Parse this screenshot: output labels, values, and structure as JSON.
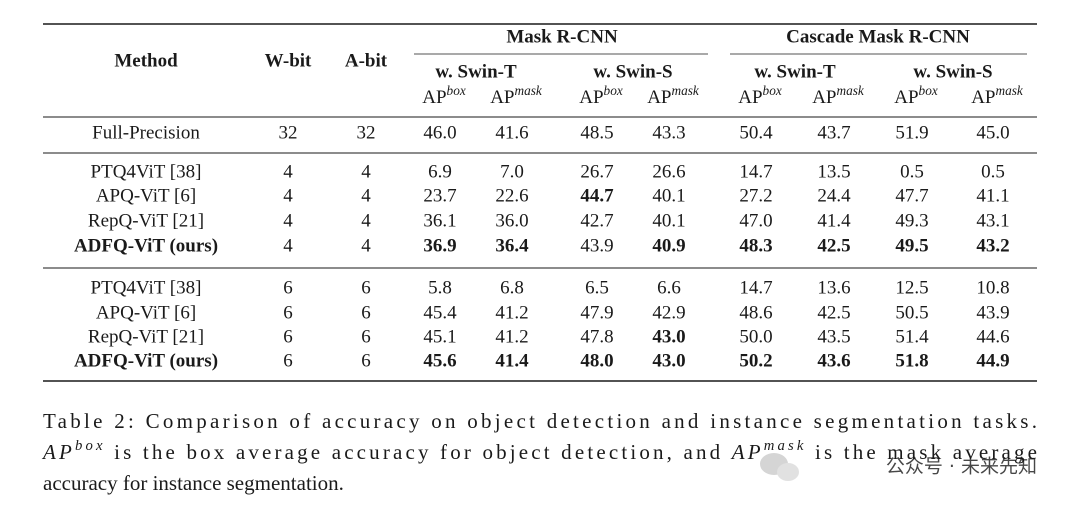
{
  "table": {
    "header": {
      "method": "Method",
      "wbit": "W-bit",
      "abit": "A-bit",
      "groups": [
        "Mask R-CNN",
        "Cascade Mask R-CNN"
      ],
      "backbones": [
        "w. Swin-T",
        "w. Swin-S",
        "w. Swin-T",
        "w. Swin-S"
      ],
      "metrics": [
        {
          "base": "AP",
          "sup": "box"
        },
        {
          "base": "AP",
          "sup": "mask"
        },
        {
          "base": "AP",
          "sup": "box"
        },
        {
          "base": "AP",
          "sup": "mask"
        },
        {
          "base": "AP",
          "sup": "box"
        },
        {
          "base": "AP",
          "sup": "mask"
        },
        {
          "base": "AP",
          "sup": "box"
        },
        {
          "base": "AP",
          "sup": "mask"
        }
      ]
    },
    "sections": [
      [
        {
          "method": "Full-Precision",
          "wbit": "32",
          "abit": "32",
          "values": [
            "46.0",
            "41.6",
            "48.5",
            "43.3",
            "50.4",
            "43.7",
            "51.9",
            "45.0"
          ],
          "bold_method": false,
          "bold_values": []
        }
      ],
      [
        {
          "method": "PTQ4ViT [38]",
          "wbit": "4",
          "abit": "4",
          "values": [
            "6.9",
            "7.0",
            "26.7",
            "26.6",
            "14.7",
            "13.5",
            "0.5",
            "0.5"
          ],
          "bold_method": false,
          "bold_values": []
        },
        {
          "method": "APQ-ViT [6]",
          "wbit": "4",
          "abit": "4",
          "values": [
            "23.7",
            "22.6",
            "44.7",
            "40.1",
            "27.2",
            "24.4",
            "47.7",
            "41.1"
          ],
          "bold_method": false,
          "bold_values": [
            2
          ]
        },
        {
          "method": "RepQ-ViT [21]",
          "wbit": "4",
          "abit": "4",
          "values": [
            "36.1",
            "36.0",
            "42.7",
            "40.1",
            "47.0",
            "41.4",
            "49.3",
            "43.1"
          ],
          "bold_method": false,
          "bold_values": []
        },
        {
          "method": "ADFQ-ViT (ours)",
          "wbit": "4",
          "abit": "4",
          "values": [
            "36.9",
            "36.4",
            "43.9",
            "40.9",
            "48.3",
            "42.5",
            "49.5",
            "43.2"
          ],
          "bold_method": true,
          "bold_values": [
            0,
            1,
            3,
            4,
            5,
            6,
            7
          ]
        }
      ],
      [
        {
          "method": "PTQ4ViT [38]",
          "wbit": "6",
          "abit": "6",
          "values": [
            "5.8",
            "6.8",
            "6.5",
            "6.6",
            "14.7",
            "13.6",
            "12.5",
            "10.8"
          ],
          "bold_method": false,
          "bold_values": []
        },
        {
          "method": "APQ-ViT [6]",
          "wbit": "6",
          "abit": "6",
          "values": [
            "45.4",
            "41.2",
            "47.9",
            "42.9",
            "48.6",
            "42.5",
            "50.5",
            "43.9"
          ],
          "bold_method": false,
          "bold_values": []
        },
        {
          "method": "RepQ-ViT [21]",
          "wbit": "6",
          "abit": "6",
          "values": [
            "45.1",
            "41.2",
            "47.8",
            "43.0",
            "50.0",
            "43.5",
            "51.4",
            "44.6"
          ],
          "bold_method": false,
          "bold_values": [
            3
          ]
        },
        {
          "method": "ADFQ-ViT (ours)",
          "wbit": "6",
          "abit": "6",
          "values": [
            "45.6",
            "41.4",
            "48.0",
            "43.0",
            "50.2",
            "43.6",
            "51.8",
            "44.9"
          ],
          "bold_method": true,
          "bold_values": [
            0,
            1,
            2,
            3,
            4,
            5,
            6,
            7
          ]
        }
      ]
    ]
  },
  "caption": {
    "lines": [
      [
        "Table 2:  Comparison of accuracy on object detection and instance segmentation tasks."
      ],
      [
        {
          "base": "AP",
          "sup": "box"
        },
        " is the box average accuracy for object detection, and ",
        {
          "base": "AP",
          "sup": "mask"
        },
        " is the mask average"
      ],
      [
        "accuracy for instance segmentation."
      ]
    ]
  },
  "watermark": "公众号 · 未来先知"
}
